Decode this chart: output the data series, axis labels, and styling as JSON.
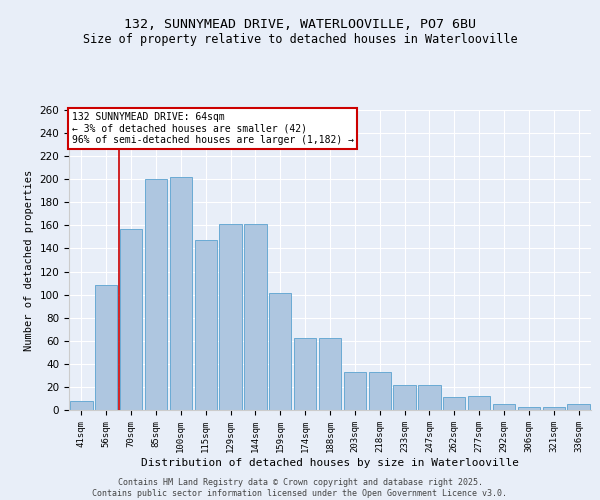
{
  "title1": "132, SUNNYMEAD DRIVE, WATERLOOVILLE, PO7 6BU",
  "title2": "Size of property relative to detached houses in Waterlooville",
  "xlabel": "Distribution of detached houses by size in Waterlooville",
  "ylabel": "Number of detached properties",
  "bar_color": "#aec6e0",
  "bar_edge_color": "#6aaad4",
  "background_color": "#e8eef8",
  "grid_color": "#ffffff",
  "categories": [
    "41sqm",
    "56sqm",
    "70sqm",
    "85sqm",
    "100sqm",
    "115sqm",
    "129sqm",
    "144sqm",
    "159sqm",
    "174sqm",
    "188sqm",
    "203sqm",
    "218sqm",
    "233sqm",
    "247sqm",
    "262sqm",
    "277sqm",
    "292sqm",
    "306sqm",
    "321sqm",
    "336sqm"
  ],
  "values": [
    8,
    108,
    157,
    200,
    202,
    147,
    161,
    161,
    101,
    62,
    62,
    33,
    33,
    22,
    22,
    11,
    12,
    5,
    3,
    3,
    5
  ],
  "ylim": [
    0,
    260
  ],
  "yticks": [
    0,
    20,
    40,
    60,
    80,
    100,
    120,
    140,
    160,
    180,
    200,
    220,
    240,
    260
  ],
  "redline_x": 1.5,
  "annotation_text": "132 SUNNYMEAD DRIVE: 64sqm\n← 3% of detached houses are smaller (42)\n96% of semi-detached houses are larger (1,182) →",
  "annotation_box_color": "#ffffff",
  "annotation_border_color": "#cc0000",
  "footer1": "Contains HM Land Registry data © Crown copyright and database right 2025.",
  "footer2": "Contains public sector information licensed under the Open Government Licence v3.0."
}
